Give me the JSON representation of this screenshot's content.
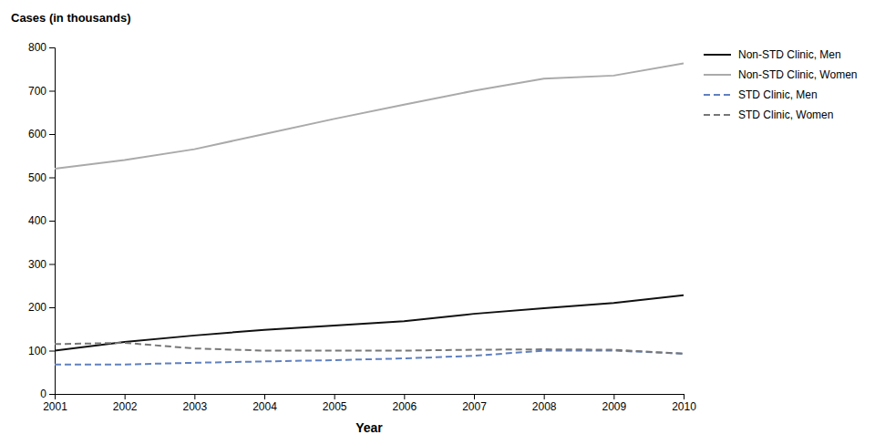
{
  "chart_data": {
    "type": "line",
    "xlabel": "Year",
    "ylabel": "Cases (in thousands)",
    "x": [
      2001,
      2002,
      2003,
      2004,
      2005,
      2006,
      2007,
      2008,
      2009,
      2010
    ],
    "xlim": [
      2001,
      2010
    ],
    "xticks": [
      2001,
      2002,
      2003,
      2004,
      2005,
      2006,
      2007,
      2008,
      2009,
      2010
    ],
    "ylim": [
      0,
      800
    ],
    "yticks": [
      0,
      100,
      200,
      300,
      400,
      500,
      600,
      700,
      800
    ],
    "grid": false,
    "legend": "upper right",
    "series": [
      {
        "name": "Non-STD Clinic, Men",
        "color": "#111111",
        "line_style": "solid",
        "values": [
          100,
          120,
          135,
          148,
          158,
          168,
          185,
          198,
          210,
          228
        ]
      },
      {
        "name": "Non-STD Clinic, Women",
        "color": "#aaaaaa",
        "line_style": "solid",
        "values": [
          520,
          540,
          565,
          600,
          635,
          668,
          700,
          728,
          735,
          763
        ]
      },
      {
        "name": "STD Clinic, Men",
        "color": "#6080c0",
        "line_style": "dashed",
        "values": [
          68,
          68,
          72,
          75,
          78,
          82,
          88,
          100,
          100,
          93
        ]
      },
      {
        "name": "STD Clinic, Women",
        "color": "#777777",
        "line_style": "dashed",
        "values": [
          115,
          118,
          105,
          100,
          100,
          100,
          102,
          103,
          102,
          93
        ]
      }
    ]
  }
}
